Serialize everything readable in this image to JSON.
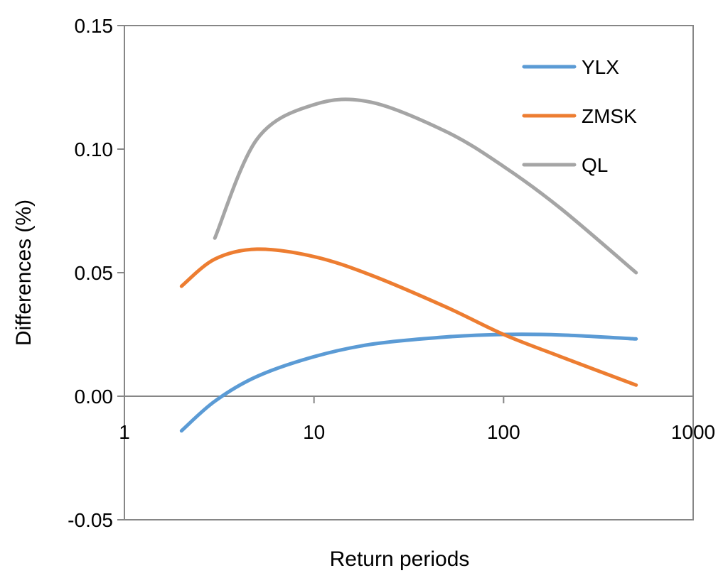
{
  "chart_data": {
    "type": "line",
    "title": "",
    "xlabel": "Return periods",
    "ylabel": "Differences (%)",
    "x_scale": "log",
    "xlim": [
      1,
      1000
    ],
    "ylim": [
      -0.05,
      0.15
    ],
    "x_ticks": [
      1,
      10,
      100,
      1000
    ],
    "x_tick_labels": [
      "1",
      "10",
      "100",
      "1000"
    ],
    "y_ticks": [
      -0.05,
      0.0,
      0.05,
      0.1,
      0.15
    ],
    "y_tick_labels": [
      "-0.05",
      "0.00",
      "0.05",
      "0.10",
      "0.15"
    ],
    "grid": false,
    "legend_position": "top-right",
    "x": [
      2,
      3,
      5,
      10,
      20,
      50,
      100,
      200,
      500
    ],
    "series": [
      {
        "name": "YLX",
        "color": "#5B9BD5",
        "values": [
          -0.014,
          -0.002,
          0.008,
          0.016,
          0.021,
          0.024,
          0.025,
          0.0248,
          0.0232
        ]
      },
      {
        "name": "ZMSK",
        "color": "#ED7D31",
        "values": [
          0.0445,
          0.0555,
          0.0595,
          0.0565,
          0.049,
          0.036,
          0.025,
          0.016,
          0.0045
        ]
      },
      {
        "name": "QL",
        "color": "#A5A5A5",
        "values": [
          null,
          0.064,
          0.104,
          0.118,
          0.119,
          0.107,
          0.093,
          0.076,
          0.05
        ]
      }
    ]
  }
}
